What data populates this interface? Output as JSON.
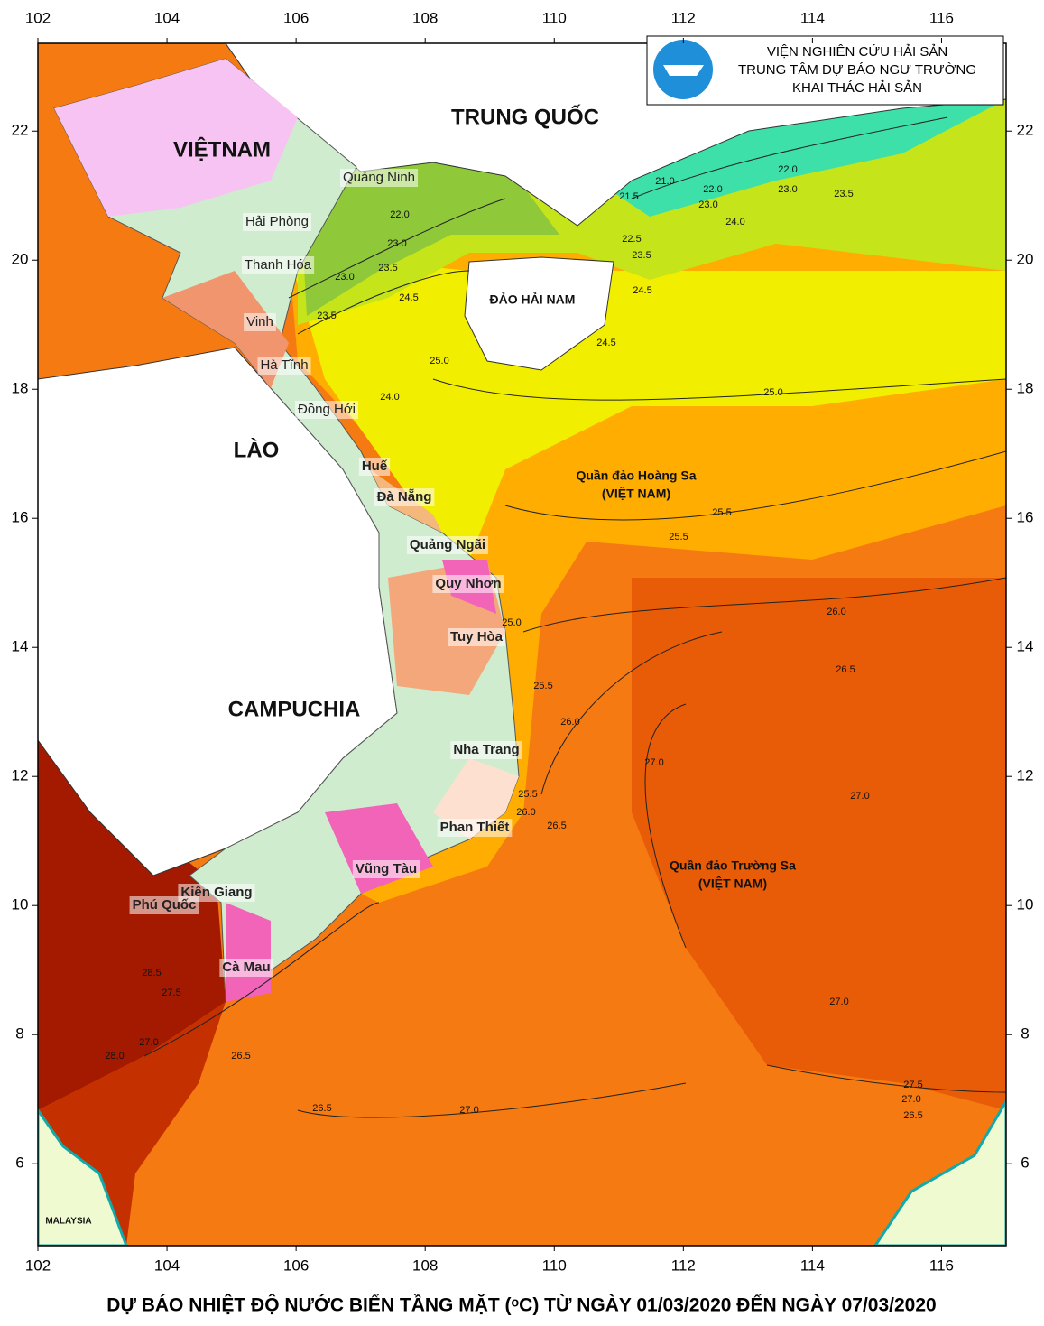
{
  "header": {
    "lines": [
      "VIỆN NGHIÊN CỨU HẢI SẢN",
      "TRUNG TÂM DỰ BÁO NGƯ TRƯỜNG",
      "KHAI THÁC HẢI SẢN"
    ]
  },
  "map": {
    "xlim": [
      102,
      117
    ],
    "ylim": [
      4.73,
      23.36
    ],
    "xticks": [
      102,
      104,
      106,
      108,
      110,
      112,
      114,
      116
    ],
    "yticks": [
      6,
      8,
      10,
      12,
      14,
      16,
      18,
      20,
      22
    ],
    "countries": [
      "VIỆTNAM",
      "TRUNG QUỐC",
      "LÀO",
      "CAMPUCHIA",
      "MALAYSIA"
    ],
    "places": [
      "Quảng Ninh",
      "Hải Phòng",
      "Thanh Hóa",
      "Vinh",
      "Hà Tĩnh",
      "Đồng Hới",
      "Huế",
      "Đà Nẵng",
      "Quảng Ngãi",
      "Quy Nhơn",
      "Tuy Hòa",
      "Nha Trang",
      "Phan Thiết",
      "Vũng Tàu",
      "Kiên Giang",
      "Phú Quốc",
      "Cà Mau"
    ],
    "islands": [
      "ĐẢO HẢI NAM",
      "Quần đảo Hoàng Sa",
      "(VIỆT NAM)",
      "Quần đảo Trường Sa",
      "(VIỆT NAM)"
    ],
    "isotherm_labels": [
      "21.0",
      "22.0",
      "22.0",
      "23.0",
      "23.0",
      "23.5",
      "24.0",
      "21.5",
      "22.5",
      "23.5",
      "24.5",
      "24.5",
      "22.0",
      "23.0",
      "23.5",
      "23.0",
      "23.5",
      "24.5",
      "25.0",
      "24.0",
      "25.0",
      "25.5",
      "25.5",
      "26.0",
      "26.5",
      "25.0",
      "25.5",
      "26.0",
      "27.0",
      "27.0",
      "26.5",
      "26.0",
      "25.5",
      "28.5",
      "27.5",
      "27.0",
      "28.0",
      "26.5",
      "26.5",
      "27.0",
      "27.0",
      "27.5",
      "27.0",
      "26.5"
    ]
  },
  "title": "DỰ BÁO NHIỆT ĐỘ NƯỚC BIỂN TẦNG MẶT (ᵒC) TỪ NGÀY 01/03/2020 ĐẾN NGÀY 07/03/2020"
}
